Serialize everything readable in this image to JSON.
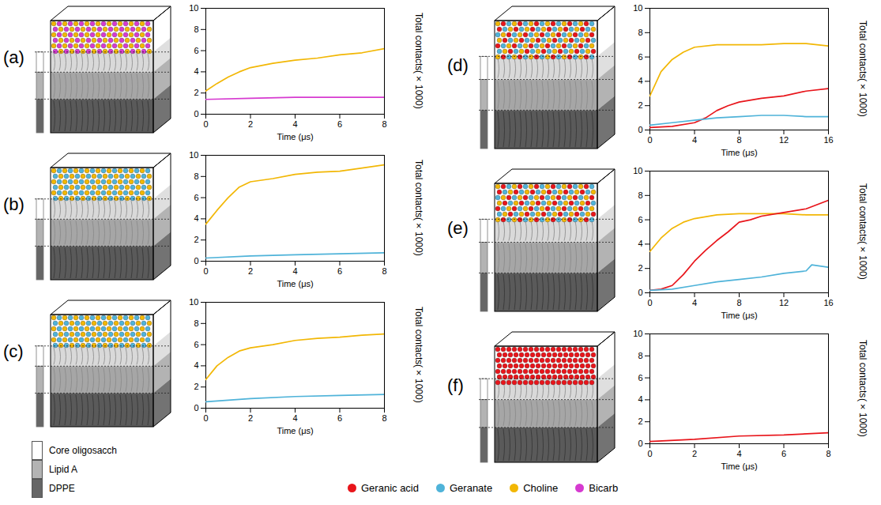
{
  "species": [
    {
      "name": "Geranic acid",
      "color": "#e8151b"
    },
    {
      "name": "Geranate",
      "color": "#4fb3d9"
    },
    {
      "name": "Choline",
      "color": "#f2b705"
    },
    {
      "name": "Bicarb",
      "color": "#d63ad0"
    }
  ],
  "layers": [
    {
      "name": "Core oligosacch",
      "color": "#ffffff"
    },
    {
      "name": "Lipid A",
      "color": "#b3b3b3"
    },
    {
      "name": "DPPE",
      "color": "#666666"
    }
  ],
  "chart_data": [
    {
      "type": "line",
      "panel": "(a)",
      "xlabel": "Time (μs)",
      "ylabel": [
        "Total contacts",
        "(×1000)"
      ],
      "xlim": [
        0,
        8
      ],
      "xticks": [
        0,
        2,
        4,
        6,
        8
      ],
      "ylim": [
        0,
        10
      ],
      "yticks": [
        0,
        2,
        4,
        6,
        8,
        10
      ],
      "series": [
        {
          "name": "Choline",
          "color": "#f2b705",
          "x": [
            0,
            0.5,
            1,
            1.5,
            2,
            3,
            4,
            5,
            6,
            7,
            8
          ],
          "values": [
            2.2,
            2.9,
            3.5,
            4.0,
            4.4,
            4.8,
            5.1,
            5.3,
            5.6,
            5.8,
            6.2
          ]
        },
        {
          "name": "Bicarb",
          "color": "#d63ad0",
          "x": [
            0,
            2,
            4,
            6,
            8
          ],
          "values": [
            1.4,
            1.5,
            1.6,
            1.6,
            1.6
          ]
        }
      ]
    },
    {
      "type": "line",
      "panel": "(b)",
      "xlabel": "Time (μs)",
      "ylabel": [
        "Total contacts",
        "(×1000)"
      ],
      "xlim": [
        0,
        8
      ],
      "xticks": [
        0,
        2,
        4,
        6,
        8
      ],
      "ylim": [
        0,
        10
      ],
      "yticks": [
        0,
        2,
        4,
        6,
        8,
        10
      ],
      "series": [
        {
          "name": "Choline",
          "color": "#f2b705",
          "x": [
            0,
            0.5,
            1,
            1.5,
            2,
            3,
            4,
            5,
            6,
            7,
            8
          ],
          "values": [
            3.5,
            4.8,
            6.0,
            7.0,
            7.5,
            7.8,
            8.2,
            8.4,
            8.5,
            8.8,
            9.1
          ]
        },
        {
          "name": "Geranate",
          "color": "#4fb3d9",
          "x": [
            0,
            2,
            4,
            6,
            8
          ],
          "values": [
            0.3,
            0.5,
            0.6,
            0.7,
            0.8
          ]
        }
      ]
    },
    {
      "type": "line",
      "panel": "(c)",
      "xlabel": "Time (μs)",
      "ylabel": [
        "Total contacts",
        "(×1000)"
      ],
      "xlim": [
        0,
        8
      ],
      "xticks": [
        0,
        2,
        4,
        6,
        8
      ],
      "ylim": [
        0,
        10
      ],
      "yticks": [
        0,
        2,
        4,
        6,
        8,
        10
      ],
      "series": [
        {
          "name": "Choline",
          "color": "#f2b705",
          "x": [
            0,
            0.5,
            1,
            1.5,
            2,
            3,
            4,
            5,
            6,
            7,
            8
          ],
          "values": [
            2.7,
            4.0,
            4.8,
            5.4,
            5.7,
            6.0,
            6.4,
            6.6,
            6.7,
            6.9,
            7.0
          ]
        },
        {
          "name": "Geranate",
          "color": "#4fb3d9",
          "x": [
            0,
            2,
            4,
            6,
            8
          ],
          "values": [
            0.6,
            0.9,
            1.1,
            1.2,
            1.3
          ]
        }
      ]
    },
    {
      "type": "line",
      "panel": "(d)",
      "xlabel": "Time (μs)",
      "ylabel": [
        "Total contacts",
        "(×1000)"
      ],
      "xlim": [
        0,
        16
      ],
      "xticks": [
        0,
        4,
        8,
        12,
        16
      ],
      "ylim": [
        0,
        10
      ],
      "yticks": [
        0,
        2,
        4,
        6,
        8,
        10
      ],
      "series": [
        {
          "name": "Choline",
          "color": "#f2b705",
          "x": [
            0,
            1,
            2,
            3,
            4,
            6,
            8,
            10,
            12,
            14,
            16
          ],
          "values": [
            2.8,
            4.8,
            5.8,
            6.4,
            6.8,
            7.0,
            7.0,
            7.0,
            7.1,
            7.1,
            6.9
          ]
        },
        {
          "name": "Geranic acid",
          "color": "#e8151b",
          "x": [
            0,
            2,
            4,
            5,
            6,
            7,
            8,
            10,
            12,
            14,
            16
          ],
          "values": [
            0.2,
            0.3,
            0.6,
            1.0,
            1.6,
            2.0,
            2.3,
            2.6,
            2.8,
            3.2,
            3.4
          ]
        },
        {
          "name": "Geranate",
          "color": "#4fb3d9",
          "x": [
            0,
            2,
            4,
            6,
            8,
            10,
            12,
            14,
            16
          ],
          "values": [
            0.4,
            0.6,
            0.8,
            1.0,
            1.1,
            1.2,
            1.2,
            1.1,
            1.1
          ]
        }
      ]
    },
    {
      "type": "line",
      "panel": "(e)",
      "xlabel": "Time (μs)",
      "ylabel": [
        "Total contacts",
        "(×1000)"
      ],
      "xlim": [
        0,
        16
      ],
      "xticks": [
        0,
        4,
        8,
        12,
        16
      ],
      "ylim": [
        0,
        10
      ],
      "yticks": [
        0,
        2,
        4,
        6,
        8,
        10
      ],
      "series": [
        {
          "name": "Choline",
          "color": "#f2b705",
          "x": [
            0,
            1,
            2,
            3,
            4,
            6,
            8,
            10,
            12,
            14,
            16
          ],
          "values": [
            3.4,
            4.5,
            5.3,
            5.8,
            6.1,
            6.4,
            6.5,
            6.5,
            6.5,
            6.4,
            6.4
          ]
        },
        {
          "name": "Geranic acid",
          "color": "#e8151b",
          "x": [
            0,
            1,
            2,
            3,
            4,
            5,
            6,
            7,
            8,
            9,
            10,
            12,
            14,
            16
          ],
          "values": [
            0.2,
            0.3,
            0.6,
            1.5,
            2.6,
            3.5,
            4.3,
            5.0,
            5.8,
            6.0,
            6.3,
            6.6,
            6.9,
            7.6
          ]
        },
        {
          "name": "Geranate",
          "color": "#4fb3d9",
          "x": [
            0,
            2,
            4,
            6,
            8,
            10,
            12,
            14,
            14.5,
            16
          ],
          "values": [
            0.2,
            0.3,
            0.6,
            0.9,
            1.1,
            1.3,
            1.6,
            1.8,
            2.3,
            2.1
          ]
        }
      ]
    },
    {
      "type": "line",
      "panel": "(f)",
      "xlabel": "Time (μs)",
      "ylabel": [
        "Total contacts",
        "(×1000)"
      ],
      "xlim": [
        0,
        8
      ],
      "xticks": [
        0,
        2,
        4,
        6,
        8
      ],
      "ylim": [
        0,
        10
      ],
      "yticks": [
        0,
        2,
        4,
        6,
        8,
        10
      ],
      "series": [
        {
          "name": "Geranic acid",
          "color": "#e8151b",
          "x": [
            0,
            2,
            4,
            6,
            8
          ],
          "values": [
            0.2,
            0.4,
            0.7,
            0.8,
            1.0
          ]
        }
      ]
    }
  ]
}
